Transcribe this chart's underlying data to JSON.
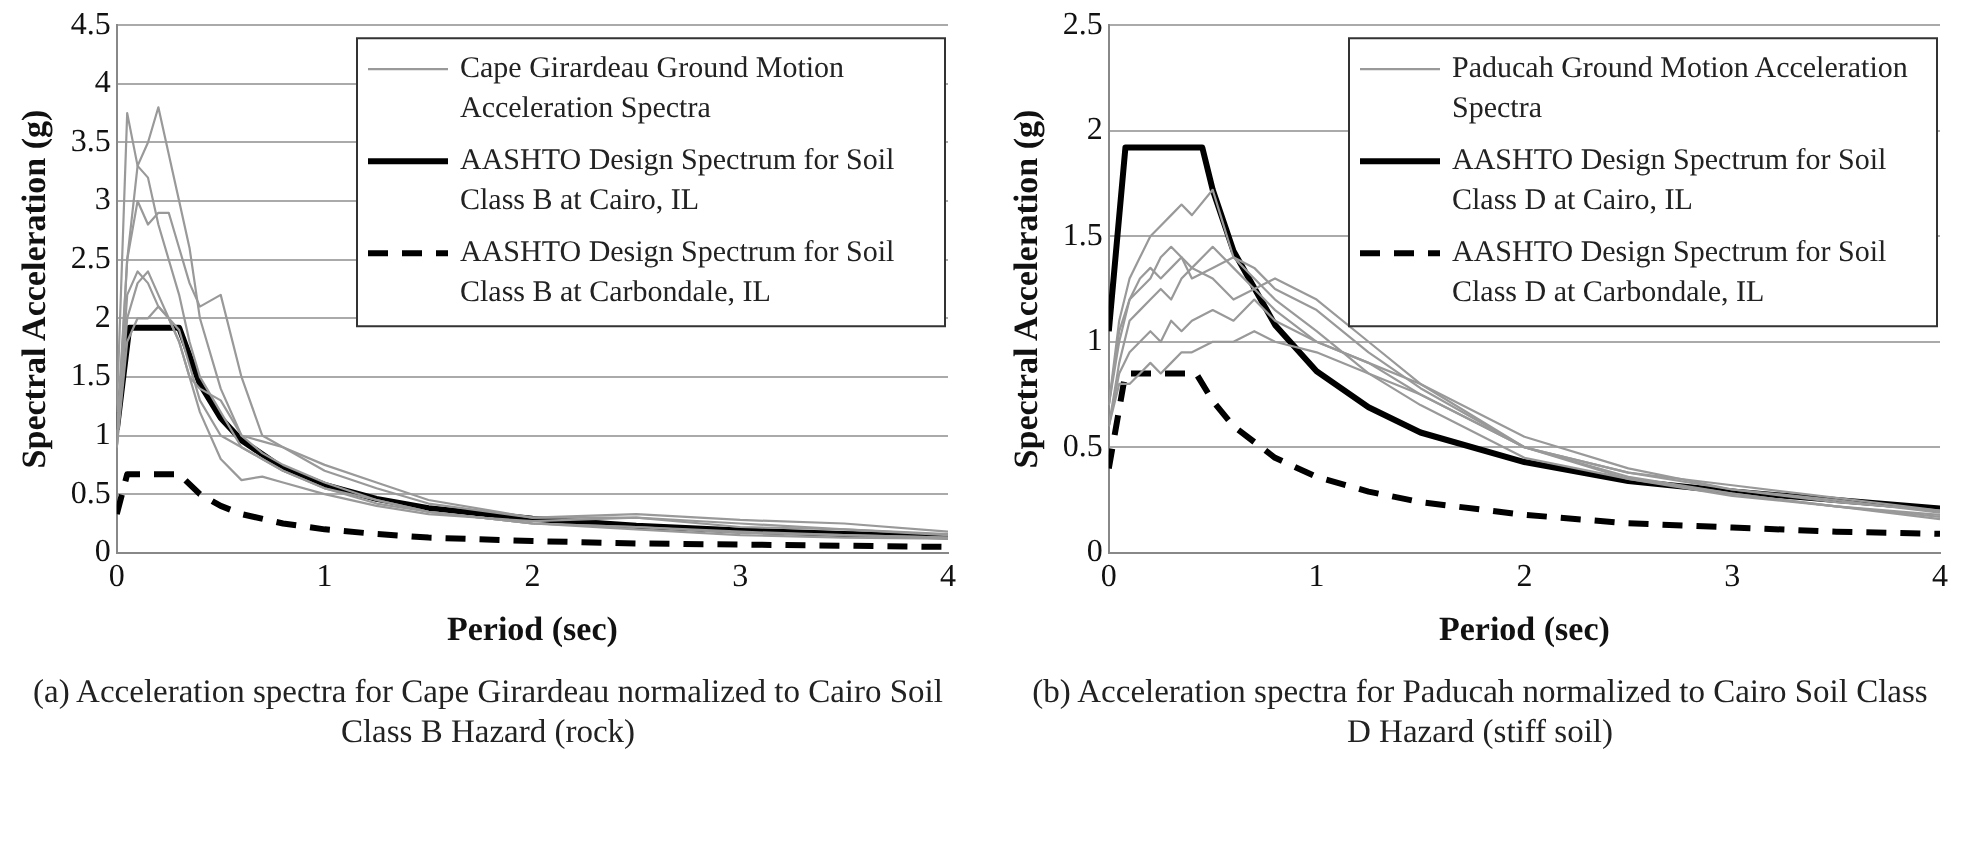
{
  "chart_data": [
    {
      "type": "line",
      "xlabel": "Period (sec)",
      "ylabel": "Spectral Acceleration (g)",
      "xlim": [
        0,
        4
      ],
      "xticks": [
        0,
        1,
        2,
        3,
        4
      ],
      "ylim": [
        0,
        4.5
      ],
      "yticks": [
        0,
        0.5,
        1,
        1.5,
        2,
        2.5,
        3,
        3.5,
        4,
        4.5
      ],
      "grid": "y",
      "legend": "top right",
      "marker": "none",
      "annotations": [
        "(a) Acceleration spectra for Cape Girardeau normalized to Cairo Soil Class B Hazard (rock)"
      ],
      "series": [
        {
          "name": "Cape Girardeau Ground Motion Acceleration Spectra",
          "color": "#999999",
          "line_style": "solid",
          "x": [
            0,
            0.05,
            0.1,
            0.15,
            0.2,
            0.25,
            0.3,
            0.35,
            0.4,
            0.5,
            0.6,
            0.7,
            0.8,
            1,
            1.25,
            1.5,
            2,
            2.5,
            3,
            3.5,
            4
          ],
          "values": [
            1.0,
            2.5,
            3.3,
            3.5,
            3.8,
            3.4,
            3.0,
            2.6,
            2.0,
            1.4,
            1.0,
            0.85,
            0.75,
            0.6,
            0.45,
            0.35,
            0.25,
            0.2,
            0.15,
            0.13,
            0.12
          ]
        },
        {
          "color": "#999999",
          "line_style": "solid",
          "x": [
            0,
            0.05,
            0.1,
            0.15,
            0.2,
            0.25,
            0.3,
            0.35,
            0.4,
            0.5,
            0.6,
            0.7,
            0.8,
            1,
            1.25,
            1.5,
            2,
            2.5,
            3,
            3.5,
            4
          ],
          "values": [
            1.2,
            3.75,
            3.3,
            3.2,
            2.8,
            2.5,
            2.2,
            1.8,
            1.5,
            1.2,
            0.9,
            0.8,
            0.7,
            0.55,
            0.42,
            0.35,
            0.25,
            0.22,
            0.17,
            0.15,
            0.13
          ]
        },
        {
          "color": "#999999",
          "line_style": "solid",
          "x": [
            0,
            0.05,
            0.1,
            0.15,
            0.2,
            0.25,
            0.3,
            0.35,
            0.4,
            0.5,
            0.6,
            0.7,
            0.8,
            1,
            1.25,
            1.5,
            2,
            2.5,
            3,
            3.5,
            4
          ],
          "values": [
            0.9,
            2.5,
            3.0,
            2.8,
            2.9,
            2.9,
            2.6,
            2.3,
            2.1,
            2.2,
            1.5,
            1.0,
            0.9,
            0.75,
            0.6,
            0.45,
            0.3,
            0.3,
            0.22,
            0.2,
            0.15
          ]
        },
        {
          "color": "#999999",
          "line_style": "solid",
          "x": [
            0,
            0.05,
            0.1,
            0.15,
            0.2,
            0.25,
            0.3,
            0.35,
            0.4,
            0.5,
            0.6,
            0.7,
            0.8,
            1,
            1.25,
            1.5,
            2,
            2.5,
            3,
            3.5,
            4
          ],
          "values": [
            0.9,
            2.2,
            2.4,
            2.3,
            2.1,
            2.0,
            1.8,
            1.5,
            1.2,
            0.8,
            0.62,
            0.65,
            0.6,
            0.5,
            0.4,
            0.33,
            0.27,
            0.3,
            0.25,
            0.2,
            0.16
          ]
        },
        {
          "color": "#999999",
          "line_style": "solid",
          "x": [
            0,
            0.05,
            0.1,
            0.15,
            0.2,
            0.25,
            0.3,
            0.35,
            0.4,
            0.5,
            0.6,
            0.7,
            0.8,
            1,
            1.25,
            1.5,
            2,
            2.5,
            3,
            3.5,
            4
          ],
          "values": [
            0.9,
            2.0,
            2.3,
            2.4,
            2.2,
            2.0,
            1.9,
            1.6,
            1.3,
            1.0,
            0.9,
            0.8,
            0.7,
            0.55,
            0.45,
            0.35,
            0.25,
            0.22,
            0.18,
            0.15,
            0.13
          ]
        },
        {
          "color": "#999999",
          "line_style": "solid",
          "x": [
            0,
            0.05,
            0.1,
            0.15,
            0.2,
            0.25,
            0.3,
            0.35,
            0.4,
            0.5,
            0.6,
            0.7,
            0.8,
            1,
            1.25,
            1.5,
            2,
            2.5,
            3,
            3.5,
            4
          ],
          "values": [
            0.9,
            1.8,
            2.0,
            2.0,
            2.1,
            2.0,
            1.8,
            1.5,
            1.4,
            1.3,
            1.0,
            0.95,
            0.9,
            0.7,
            0.55,
            0.42,
            0.3,
            0.33,
            0.28,
            0.25,
            0.18
          ]
        },
        {
          "name": "AASHTO Design Spectrum for Soil Class B at Cairo, IL",
          "color": "#000000",
          "line_style": "solid",
          "x": [
            0,
            0.06,
            0.3,
            0.4,
            0.5,
            0.6,
            0.8,
            1,
            1.25,
            1.5,
            2,
            2.5,
            3,
            3.5,
            4
          ],
          "values": [
            1.05,
            1.92,
            1.92,
            1.44,
            1.15,
            0.96,
            0.72,
            0.58,
            0.46,
            0.38,
            0.29,
            0.23,
            0.19,
            0.16,
            0.14
          ]
        },
        {
          "name": "AASHTO Design Spectrum for Soil Class B at Carbondale, IL",
          "color": "#000000",
          "line_style": "dashed",
          "x": [
            0,
            0.05,
            0.3,
            0.4,
            0.5,
            0.6,
            0.8,
            1,
            1.25,
            1.5,
            2,
            2.5,
            3,
            3.5,
            4
          ],
          "values": [
            0.33,
            0.67,
            0.67,
            0.5,
            0.4,
            0.33,
            0.25,
            0.2,
            0.16,
            0.13,
            0.1,
            0.08,
            0.07,
            0.06,
            0.05
          ]
        }
      ]
    },
    {
      "type": "line",
      "xlabel": "Period (sec)",
      "ylabel": "Spectral Acceleration (g)",
      "xlim": [
        0,
        4
      ],
      "xticks": [
        0,
        1,
        2,
        3,
        4
      ],
      "ylim": [
        0,
        2.5
      ],
      "yticks": [
        0,
        0.5,
        1,
        1.5,
        2,
        2.5
      ],
      "grid": "y",
      "legend": "top right",
      "marker": "none",
      "annotations": [
        "(b) Acceleration spectra for Paducah normalized to Cairo Soil Class D Hazard (stiff soil)"
      ],
      "series": [
        {
          "name": "Paducah Ground Motion Acceleration Spectra",
          "color": "#999999",
          "line_style": "solid",
          "x": [
            0,
            0.05,
            0.1,
            0.15,
            0.2,
            0.25,
            0.3,
            0.35,
            0.4,
            0.5,
            0.6,
            0.7,
            0.8,
            1,
            1.25,
            1.5,
            2,
            2.5,
            3,
            3.5,
            4
          ],
          "values": [
            0.7,
            1.1,
            1.3,
            1.4,
            1.5,
            1.55,
            1.6,
            1.65,
            1.6,
            1.72,
            1.4,
            1.3,
            1.2,
            1.05,
            0.85,
            0.7,
            0.45,
            0.35,
            0.28,
            0.22,
            0.18
          ]
        },
        {
          "color": "#999999",
          "line_style": "solid",
          "x": [
            0,
            0.05,
            0.1,
            0.15,
            0.2,
            0.25,
            0.3,
            0.35,
            0.4,
            0.5,
            0.6,
            0.7,
            0.8,
            1,
            1.25,
            1.5,
            2,
            2.5,
            3,
            3.5,
            4
          ],
          "values": [
            0.7,
            1.0,
            1.2,
            1.3,
            1.35,
            1.3,
            1.35,
            1.4,
            1.3,
            1.35,
            1.4,
            1.35,
            1.25,
            1.15,
            0.95,
            0.78,
            0.5,
            0.38,
            0.3,
            0.24,
            0.2
          ]
        },
        {
          "color": "#999999",
          "line_style": "solid",
          "x": [
            0,
            0.05,
            0.1,
            0.15,
            0.2,
            0.25,
            0.3,
            0.35,
            0.4,
            0.5,
            0.6,
            0.7,
            0.8,
            1,
            1.25,
            1.5,
            2,
            2.5,
            3,
            3.5,
            4
          ],
          "values": [
            0.6,
            0.9,
            1.1,
            1.15,
            1.2,
            1.25,
            1.2,
            1.3,
            1.35,
            1.3,
            1.2,
            1.25,
            1.3,
            1.2,
            1.0,
            0.8,
            0.55,
            0.4,
            0.3,
            0.25,
            0.19
          ]
        },
        {
          "color": "#999999",
          "line_style": "solid",
          "x": [
            0,
            0.05,
            0.1,
            0.15,
            0.2,
            0.25,
            0.3,
            0.35,
            0.4,
            0.5,
            0.6,
            0.7,
            0.8,
            1,
            1.25,
            1.5,
            2,
            2.5,
            3,
            3.5,
            4
          ],
          "values": [
            0.6,
            0.85,
            0.95,
            1.0,
            1.05,
            1.0,
            1.1,
            1.05,
            1.1,
            1.15,
            1.1,
            1.2,
            1.1,
            1.0,
            0.9,
            0.8,
            0.5,
            0.36,
            0.28,
            0.22,
            0.17
          ]
        },
        {
          "color": "#999999",
          "line_style": "solid",
          "x": [
            0,
            0.05,
            0.1,
            0.15,
            0.2,
            0.25,
            0.3,
            0.35,
            0.4,
            0.5,
            0.6,
            0.7,
            0.8,
            1,
            1.25,
            1.5,
            2,
            2.5,
            3,
            3.5,
            4
          ],
          "values": [
            0.6,
            0.8,
            0.8,
            0.85,
            0.9,
            0.85,
            0.9,
            0.95,
            0.95,
            1.0,
            1.0,
            1.05,
            1.0,
            0.95,
            0.85,
            0.75,
            0.5,
            0.35,
            0.27,
            0.22,
            0.16
          ]
        },
        {
          "color": "#999999",
          "line_style": "solid",
          "x": [
            0,
            0.05,
            0.1,
            0.15,
            0.2,
            0.25,
            0.3,
            0.35,
            0.4,
            0.5,
            0.6,
            0.7,
            0.8,
            1,
            1.25,
            1.5,
            2,
            2.5,
            3,
            3.5,
            4
          ],
          "values": [
            0.7,
            1.05,
            1.2,
            1.25,
            1.3,
            1.4,
            1.45,
            1.4,
            1.35,
            1.45,
            1.35,
            1.25,
            1.15,
            1.0,
            0.9,
            0.75,
            0.5,
            0.38,
            0.32,
            0.26,
            0.2
          ]
        },
        {
          "name": "AASHTO Design Spectrum for Soil Class D at Cairo, IL",
          "color": "#000000",
          "line_style": "solid",
          "x": [
            0,
            0.08,
            0.45,
            0.5,
            0.6,
            0.8,
            1,
            1.25,
            1.5,
            2,
            2.5,
            3,
            3.5,
            4
          ],
          "values": [
            1.05,
            1.92,
            1.92,
            1.72,
            1.43,
            1.08,
            0.86,
            0.69,
            0.57,
            0.43,
            0.34,
            0.29,
            0.25,
            0.21
          ]
        },
        {
          "name": "AASHTO Design Spectrum for Soil Class D at Carbondale, IL",
          "color": "#000000",
          "line_style": "dashed",
          "x": [
            0,
            0.08,
            0.42,
            0.5,
            0.6,
            0.8,
            1,
            1.25,
            1.5,
            2,
            2.5,
            3,
            3.5,
            4
          ],
          "values": [
            0.4,
            0.85,
            0.85,
            0.72,
            0.6,
            0.45,
            0.36,
            0.29,
            0.24,
            0.18,
            0.14,
            0.12,
            0.1,
            0.09
          ]
        }
      ]
    }
  ]
}
